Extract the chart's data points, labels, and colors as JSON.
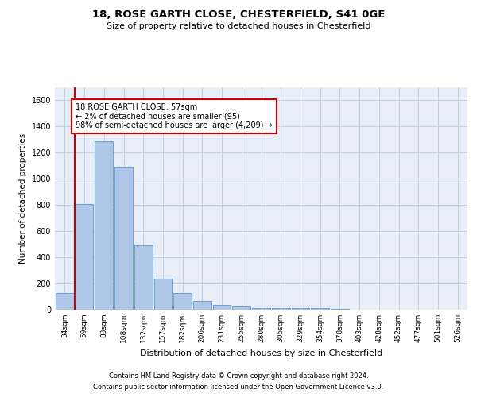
{
  "title_line1": "18, ROSE GARTH CLOSE, CHESTERFIELD, S41 0GE",
  "title_line2": "Size of property relative to detached houses in Chesterfield",
  "xlabel": "Distribution of detached houses by size in Chesterfield",
  "ylabel": "Number of detached properties",
  "categories": [
    "34sqm",
    "59sqm",
    "83sqm",
    "108sqm",
    "132sqm",
    "157sqm",
    "182sqm",
    "206sqm",
    "231sqm",
    "255sqm",
    "280sqm",
    "305sqm",
    "329sqm",
    "354sqm",
    "378sqm",
    "403sqm",
    "428sqm",
    "452sqm",
    "477sqm",
    "501sqm",
    "526sqm"
  ],
  "values": [
    130,
    810,
    1290,
    1090,
    490,
    235,
    125,
    65,
    37,
    25,
    15,
    12,
    12,
    12,
    8,
    0,
    0,
    0,
    0,
    0,
    0
  ],
  "bar_color": "#aec6e8",
  "bar_edge_color": "#5a96c8",
  "ylim": [
    0,
    1700
  ],
  "yticks": [
    0,
    200,
    400,
    600,
    800,
    1000,
    1200,
    1400,
    1600
  ],
  "annotation_text": "18 ROSE GARTH CLOSE: 57sqm\n← 2% of detached houses are smaller (95)\n98% of semi-detached houses are larger (4,209) →",
  "annotation_box_color": "#ffffff",
  "annotation_box_edge_color": "#cc0000",
  "footer_line1": "Contains HM Land Registry data © Crown copyright and database right 2024.",
  "footer_line2": "Contains public sector information licensed under the Open Government Licence v3.0.",
  "background_color": "#ffffff",
  "grid_color": "#c8d0e0",
  "ax_bg_color": "#e8eef7"
}
